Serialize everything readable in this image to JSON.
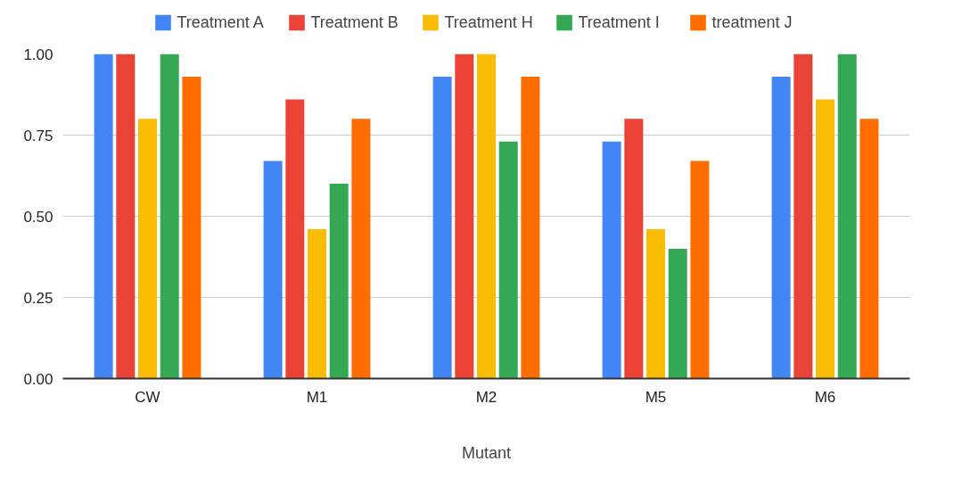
{
  "chart_data": {
    "type": "bar",
    "xlabel": "Mutant",
    "categories": [
      "CW",
      "M1",
      "M2",
      "M5",
      "M6"
    ],
    "series": [
      {
        "name": "Treatment A",
        "color": "#4285f4",
        "values": [
          1.0,
          0.67,
          0.93,
          0.73,
          0.93
        ]
      },
      {
        "name": "Treatment B",
        "color": "#ea4335",
        "values": [
          1.0,
          0.86,
          1.0,
          0.8,
          1.0
        ]
      },
      {
        "name": "Treatment H",
        "color": "#fbbc04",
        "values": [
          0.8,
          0.46,
          1.0,
          0.46,
          0.86
        ]
      },
      {
        "name": "Treatment I",
        "color": "#34a853",
        "values": [
          1.0,
          0.6,
          0.73,
          0.4,
          1.0
        ]
      },
      {
        "name": "treatment J",
        "color": "#ff6d01",
        "values": [
          0.93,
          0.8,
          0.93,
          0.67,
          0.8
        ]
      }
    ],
    "ylim": [
      0,
      1.0
    ],
    "yticks": [
      {
        "value": 0,
        "label": "0.00"
      },
      {
        "value": 0.25,
        "label": "0.25"
      },
      {
        "value": 0.5,
        "label": "0.50"
      },
      {
        "value": 0.75,
        "label": "0.75"
      },
      {
        "value": 1.0,
        "label": "1.00"
      }
    ],
    "grid": "y",
    "legend": "top"
  }
}
